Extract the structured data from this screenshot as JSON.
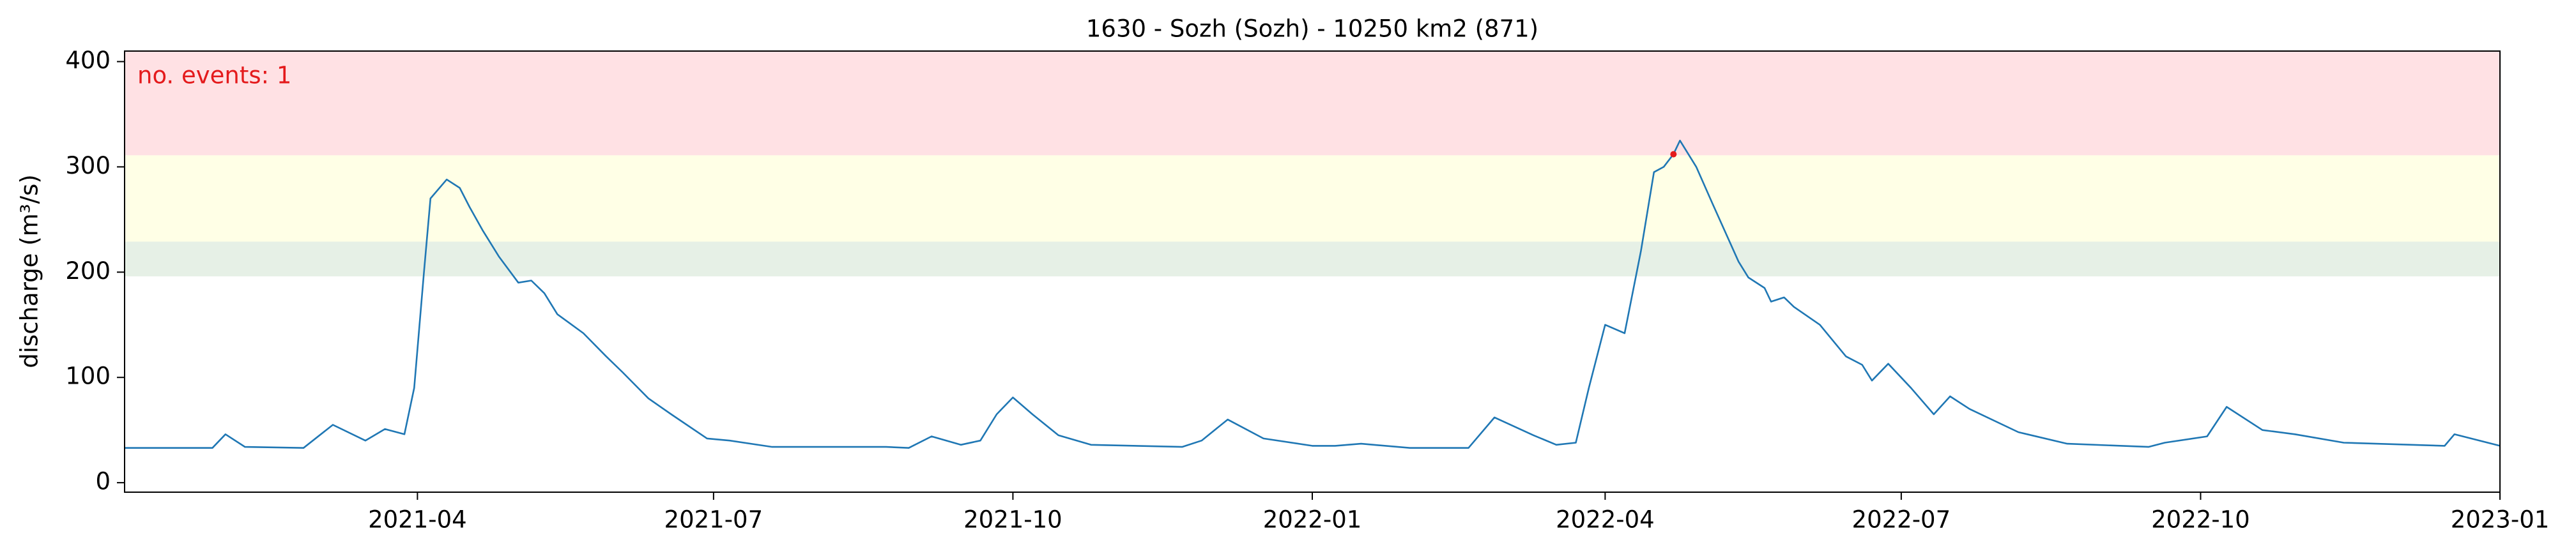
{
  "chart_data": {
    "type": "line",
    "title": "1630 - Sozh (Sozh) - 10250 km2 (871)",
    "y_label": "discharge (m³/s)",
    "annotation": "no. events: 1",
    "annotation_color": "#e41a1c",
    "xlim": [
      0,
      730
    ],
    "xticks": [
      {
        "value": 90,
        "label": "2021-04"
      },
      {
        "value": 181,
        "label": "2021-07"
      },
      {
        "value": 273,
        "label": "2021-10"
      },
      {
        "value": 365,
        "label": "2022-01"
      },
      {
        "value": 455,
        "label": "2022-04"
      },
      {
        "value": 546,
        "label": "2022-07"
      },
      {
        "value": 638,
        "label": "2022-10"
      },
      {
        "value": 730,
        "label": "2023-01"
      }
    ],
    "ylim": [
      -9,
      410
    ],
    "yticks": [
      0,
      100,
      200,
      300,
      400
    ],
    "bands": [
      {
        "ymin": 196,
        "ymax": 229,
        "color": "#e6f0e6"
      },
      {
        "ymin": 229,
        "ymax": 311,
        "color": "#ffffe6"
      },
      {
        "ymin": 311,
        "ymax": 410,
        "color": "#ffe1e4"
      }
    ],
    "series": [
      {
        "color": "#1f77b4",
        "x": [
          0,
          27,
          31,
          37,
          55,
          64,
          74,
          80,
          86,
          89,
          92,
          94,
          99,
          103,
          106,
          110,
          115,
          121,
          125,
          129,
          133,
          141,
          148,
          153,
          161,
          168,
          179,
          186,
          199,
          234,
          241,
          248,
          257,
          263,
          268,
          273,
          279,
          287,
          297,
          325,
          331,
          339,
          350,
          365,
          372,
          380,
          395,
          413,
          421,
          433,
          440,
          446,
          450,
          455,
          461,
          466,
          470,
          473,
          476,
          478,
          483,
          488,
          496,
          499,
          504,
          506,
          510,
          513,
          521,
          529,
          534,
          537,
          542,
          549,
          556,
          561,
          567,
          582,
          597,
          622,
          627,
          640,
          646,
          657,
          667,
          682,
          713,
          716,
          730
        ],
        "values": [
          33,
          33,
          46,
          34,
          33,
          55,
          40,
          51,
          46,
          90,
          200,
          270,
          288,
          280,
          262,
          240,
          215,
          190,
          192,
          180,
          160,
          142,
          120,
          105,
          80,
          65,
          42,
          40,
          34,
          34,
          33,
          44,
          36,
          40,
          65,
          81,
          65,
          45,
          36,
          34,
          40,
          60,
          42,
          35,
          35,
          37,
          33,
          33,
          62,
          45,
          36,
          38,
          90,
          150,
          142,
          220,
          295,
          300,
          312,
          325,
          300,
          265,
          210,
          195,
          185,
          172,
          176,
          167,
          150,
          120,
          112,
          97,
          113,
          90,
          65,
          82,
          70,
          48,
          37,
          34,
          38,
          44,
          72,
          50,
          46,
          38,
          35,
          46,
          35
        ]
      }
    ],
    "events": {
      "color": "#e41a1c",
      "x": [
        476
      ],
      "values": [
        312
      ]
    }
  }
}
